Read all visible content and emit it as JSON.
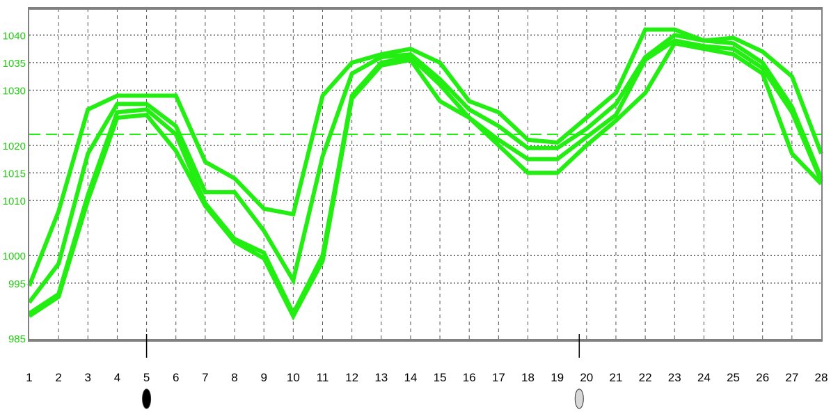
{
  "chart_data": {
    "type": "line",
    "title": "",
    "xlabel": "",
    "ylabel": "",
    "x": [
      1,
      2,
      3,
      4,
      5,
      6,
      7,
      8,
      9,
      10,
      11,
      12,
      13,
      14,
      15,
      16,
      17,
      18,
      19,
      20,
      21,
      22,
      23,
      24,
      25,
      26,
      27,
      28
    ],
    "x_tick_labels": [
      "1",
      "2",
      "3",
      "4",
      "5",
      "6",
      "7",
      "8",
      "9",
      "10",
      "11",
      "12",
      "13",
      "14",
      "15",
      "16",
      "17",
      "18",
      "19",
      "20",
      "21",
      "22",
      "23",
      "24",
      "25",
      "26",
      "27",
      "28"
    ],
    "y_tick_values": [
      985,
      995,
      1000,
      1010,
      1015,
      1020,
      1030,
      1035,
      1040
    ],
    "y_tick_labels": [
      "985",
      "995",
      "1000",
      "1010",
      "1015",
      "1020",
      "1030",
      "1035",
      "1040"
    ],
    "ylim": [
      984,
      1045
    ],
    "xlim": [
      1,
      28
    ],
    "grid": true,
    "reference_line": 1022,
    "series": [
      {
        "values": [
          994.5,
          1008,
          1026.5,
          1029,
          1029,
          1029,
          1017,
          1014,
          1008.5,
          1007.5,
          1029,
          1035,
          1036.5,
          1037.5,
          1035,
          1028,
          1026,
          1021,
          1020.5,
          1025,
          1029.5,
          1041,
          1041,
          1039,
          1039.5,
          1037,
          1032.5,
          1018.5
        ]
      },
      {
        "values": [
          991.5,
          998.5,
          1018.5,
          1027.5,
          1027.5,
          1023.5,
          1011.5,
          1011.5,
          1004.5,
          995.5,
          1018,
          1033,
          1036,
          1036.5,
          1032,
          1026.5,
          1023.5,
          1019.5,
          1019.5,
          1023,
          1027.5,
          1036,
          1040,
          1039,
          1038.5,
          1035,
          1027,
          1014
        ]
      },
      {
        "values": [
          989.5,
          993,
          1011,
          1026,
          1026.5,
          1022,
          1009.5,
          1003,
          1000.5,
          989.5,
          1000,
          1029,
          1035,
          1036,
          1031,
          1025,
          1021,
          1017.5,
          1017.5,
          1021.5,
          1025.5,
          1035.5,
          1039,
          1038,
          1037.5,
          1034,
          1026,
          1013.5
        ]
      },
      {
        "values": [
          989,
          992.5,
          1010,
          1025,
          1025.5,
          1019,
          1009,
          1002.5,
          999.5,
          989,
          999,
          1028.5,
          1034.5,
          1035.5,
          1028,
          1025,
          1020,
          1015,
          1015,
          1020,
          1024.5,
          1029.5,
          1038.5,
          1037.5,
          1036.5,
          1033,
          1018.5,
          1013
        ]
      }
    ],
    "colors": {
      "series": "#22ee11",
      "axis_labels": "#22cc11",
      "grid": "#555555",
      "frame": "#808080"
    },
    "markers": [
      {
        "x": 5,
        "icon": "new-moon-icon",
        "color": "#000000"
      },
      {
        "x": 19.75,
        "icon": "full-moon-icon",
        "color": "#d8d8d8"
      }
    ]
  }
}
